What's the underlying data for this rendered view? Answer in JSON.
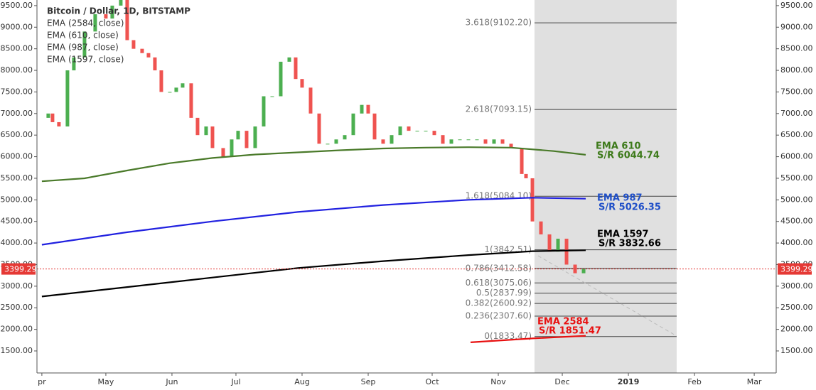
{
  "chart_data": {
    "type": "price",
    "title": "Bitcoin / Dollar, 1D, BITSTAMP",
    "indicators": [
      "EMA (2584, close)",
      "EMA (610, close)",
      "EMA (987, close)",
      "EMA (1597, close)"
    ],
    "xlim": [
      -2.3,
      344.3
    ],
    "xticks": [
      {
        "value": 0,
        "label": "pr"
      },
      {
        "value": 30,
        "label": "May"
      },
      {
        "value": 61,
        "label": "Jun"
      },
      {
        "value": 91,
        "label": "Jul"
      },
      {
        "value": 122,
        "label": "Aug"
      },
      {
        "value": 153,
        "label": "Sep"
      },
      {
        "value": 183,
        "label": "Oct"
      },
      {
        "value": 214,
        "label": "Nov"
      },
      {
        "value": 244,
        "label": "Dec"
      },
      {
        "value": 275,
        "label": "2019"
      },
      {
        "value": 306,
        "label": "Feb"
      },
      {
        "value": 334,
        "label": "Mar"
      }
    ],
    "ylim": [
      990,
      9630
    ],
    "yticks": [
      {
        "value": 1500,
        "label": "1500.00"
      },
      {
        "value": 2000,
        "label": "2000.00"
      },
      {
        "value": 2500,
        "label": "2500.00"
      },
      {
        "value": 3000,
        "label": "3000.00"
      },
      {
        "value": 3500,
        "label": "3500.00"
      },
      {
        "value": 4000,
        "label": "4000.00"
      },
      {
        "value": 4500,
        "label": "4500.00"
      },
      {
        "value": 5000,
        "label": "5000.00"
      },
      {
        "value": 5500,
        "label": "5500.00"
      },
      {
        "value": 6000,
        "label": "6000.00"
      },
      {
        "value": 6500,
        "label": "6500.00"
      },
      {
        "value": 7000,
        "label": "7000.00"
      },
      {
        "value": 7500,
        "label": "7500.00"
      },
      {
        "value": 8000,
        "label": "8000.00"
      },
      {
        "value": 8500,
        "label": "8500.00"
      },
      {
        "value": 9000,
        "label": "9000.00"
      },
      {
        "value": 9500,
        "label": "9500.00"
      }
    ],
    "price": {
      "up_color": "#4caf50",
      "down_color": "#ef5350",
      "x": [
        0,
        3,
        5,
        8,
        12,
        15,
        20,
        25,
        30,
        33,
        37,
        40,
        43,
        47,
        50,
        53,
        56,
        60,
        63,
        66,
        70,
        73,
        77,
        80,
        85,
        89,
        92,
        96,
        100,
        104,
        108,
        112,
        116,
        119,
        122,
        126,
        130,
        134,
        138,
        142,
        146,
        150,
        153,
        156,
        160,
        164,
        168,
        172,
        176,
        180,
        184,
        188,
        192,
        196,
        200,
        204,
        208,
        212,
        216,
        220,
        225,
        227,
        230,
        234,
        238,
        242,
        246,
        250,
        254
      ],
      "values": [
        6900,
        7000,
        6800,
        6700,
        8000,
        8300,
        8900,
        9300,
        9200,
        9500,
        9700,
        8700,
        8500,
        8400,
        8300,
        8000,
        7500,
        7500,
        7600,
        7700,
        6900,
        6500,
        6700,
        6200,
        6000,
        6400,
        6600,
        6200,
        6700,
        7400,
        7400,
        8200,
        8300,
        7800,
        7600,
        7000,
        6300,
        6300,
        6400,
        6500,
        7000,
        7200,
        7000,
        6400,
        6300,
        6500,
        6700,
        6600,
        6600,
        6600,
        6500,
        6300,
        6400,
        6400,
        6400,
        6400,
        6300,
        6400,
        6300,
        6200,
        5600,
        5500,
        4500,
        4200,
        3800,
        4100,
        3500,
        3300,
        3400
      ]
    },
    "series": [
      {
        "name": "EMA 610",
        "color": "#4a7a2a",
        "x": [
          0,
          20,
          40,
          60,
          80,
          100,
          120,
          140,
          160,
          180,
          200,
          220,
          240,
          255
        ],
        "values": [
          5430,
          5500,
          5680,
          5850,
          5970,
          6050,
          6100,
          6150,
          6190,
          6210,
          6220,
          6210,
          6130,
          6044.74
        ]
      },
      {
        "name": "EMA 987",
        "color": "#2121e0",
        "x": [
          0,
          40,
          80,
          120,
          160,
          200,
          230,
          255
        ],
        "values": [
          3960,
          4250,
          4500,
          4720,
          4880,
          5000,
          5050,
          5026.35
        ]
      },
      {
        "name": "EMA 1597",
        "color": "#000000",
        "x": [
          0,
          40,
          80,
          120,
          160,
          200,
          230,
          255
        ],
        "values": [
          2760,
          2980,
          3200,
          3420,
          3580,
          3720,
          3810,
          3832.66
        ]
      },
      {
        "name": "EMA 2584",
        "color": "#e81010",
        "x": [
          201,
          230,
          255
        ],
        "values": [
          1700,
          1790,
          1851.47
        ]
      }
    ],
    "fib_levels": [
      {
        "label": "3.618(9102.20)",
        "value": 9102.2
      },
      {
        "label": "2.618(7093.15)",
        "value": 7093.15
      },
      {
        "label": "1.618(5084.10)",
        "value": 5084.1
      },
      {
        "label": "1(3842.51)",
        "value": 3842.51
      },
      {
        "label": "0.786(3412.58)",
        "value": 3412.58
      },
      {
        "label": "0.618(3075.06)",
        "value": 3075.06
      },
      {
        "label": "0.5(2837.99)",
        "value": 2837.99
      },
      {
        "label": "0.382(2600.92)",
        "value": 2600.92
      },
      {
        "label": "0.236(2307.60)",
        "value": 2307.6
      },
      {
        "label": "0(1833.47)",
        "value": 1833.47
      }
    ],
    "annotations": [
      {
        "lines": [
          "EMA 610",
          "S/R 6044.74"
        ],
        "color": "#3d7a1a"
      },
      {
        "lines": [
          "EMA 987",
          "S/R 5026.35"
        ],
        "color": "#1f4fc8"
      },
      {
        "lines": [
          "EMA 1597",
          "S/R 3832.66"
        ],
        "color": "#000000"
      },
      {
        "lines": [
          "EMA 2584",
          "S/R 1851.47"
        ],
        "color": "#e81010"
      }
    ],
    "last_price": 3399.29,
    "last_price_color": "#e53935"
  }
}
